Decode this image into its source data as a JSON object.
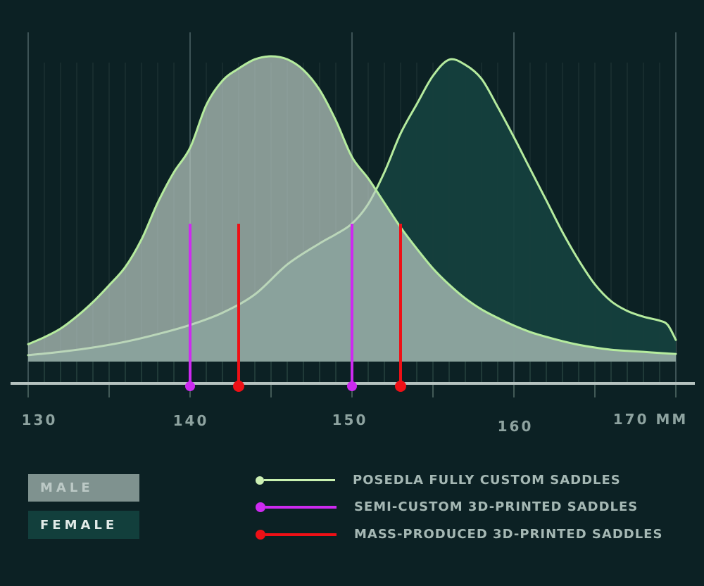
{
  "theme": {
    "background": "#0c2124",
    "axis_color": "#b5c2bf",
    "tick_label_color": "#8ea3a0",
    "grid_minor_color": "#223639",
    "grid_major_color": "#3d5356",
    "grid_band_color": "#27423f",
    "axis_tick_color": "#425a57"
  },
  "chart_data": {
    "type": "area",
    "title": "",
    "xlabel": "MM",
    "ylabel": "",
    "x_range": [
      130,
      170
    ],
    "ylim": [
      0,
      1
    ],
    "grid": "vertical only: minor every 1 mm, major every 10 mm",
    "legend_position": "bottom",
    "x_ticks": [
      130,
      140,
      150,
      160,
      170
    ],
    "x_tick_labels": [
      "130",
      "140",
      "150",
      "160",
      "170 MM"
    ],
    "series": [
      {
        "name": "FEMALE",
        "type": "area",
        "fill": "#15403e",
        "fill_opacity": 0.94,
        "stroke": "#b5eb9e",
        "peak_mm": 156,
        "x": [
          130,
          132,
          134,
          136,
          138,
          140,
          142,
          144,
          146,
          148,
          149,
          150,
          151,
          152,
          153,
          154,
          155,
          156,
          157,
          158,
          159,
          160,
          161,
          162,
          163,
          164,
          165,
          166,
          167,
          168,
          169,
          169.5,
          170
        ],
        "y": [
          0.021,
          0.032,
          0.046,
          0.065,
          0.09,
          0.12,
          0.16,
          0.22,
          0.318,
          0.387,
          0.417,
          0.452,
          0.516,
          0.62,
          0.747,
          0.843,
          0.936,
          0.989,
          0.972,
          0.926,
          0.834,
          0.735,
          0.631,
          0.528,
          0.424,
          0.332,
          0.253,
          0.198,
          0.166,
          0.147,
          0.134,
          0.12,
          0.071
        ]
      },
      {
        "name": "MALE",
        "type": "area",
        "fill": "#bccdc5",
        "fill_opacity": 0.7,
        "stroke": "#b5eb9e",
        "peak_mm": 145,
        "x": [
          130,
          131,
          132,
          133,
          134,
          135,
          136,
          137,
          138,
          139,
          140,
          141,
          142,
          143,
          144,
          145,
          146,
          147,
          148,
          149,
          150,
          151,
          152,
          153,
          154,
          155,
          156,
          157,
          158,
          159,
          160,
          161,
          162,
          163,
          164,
          165,
          166,
          167,
          168,
          169,
          170
        ],
        "y": [
          0.057,
          0.08,
          0.108,
          0.148,
          0.195,
          0.25,
          0.31,
          0.4,
          0.52,
          0.62,
          0.7,
          0.84,
          0.92,
          0.96,
          0.99,
          1.0,
          0.99,
          0.955,
          0.89,
          0.79,
          0.67,
          0.6,
          0.52,
          0.44,
          0.37,
          0.305,
          0.252,
          0.207,
          0.171,
          0.143,
          0.118,
          0.097,
          0.081,
          0.067,
          0.055,
          0.046,
          0.039,
          0.035,
          0.032,
          0.028,
          0.025
        ]
      }
    ],
    "vertical_markers": [
      {
        "label": "SEMI-CUSTOM 3D-PRINTED SADDLES",
        "color": "#cd2af0",
        "x_values_mm": [
          140,
          150
        ],
        "dot_radius": 7
      },
      {
        "label": "MASS-PRODUCED 3D-PRINTED SADDLES",
        "color": "#ee1016",
        "x_values_mm": [
          143,
          153
        ],
        "dot_radius": 8
      }
    ],
    "curve_outline_legend": {
      "label": "POSEDLA FULLY CUSTOM SADDLES",
      "color": "#b5eb9e"
    }
  },
  "legend": {
    "male_box": {
      "label": "MALE",
      "fill": "#7f928f"
    },
    "female_box": {
      "label": "FEMALE",
      "fill": "#123f3c"
    },
    "lines": [
      {
        "label": "POSEDLA FULLY CUSTOM SADDLES",
        "color": "#c9f1b0",
        "dot": "#cdf0b4"
      },
      {
        "label": "SEMI-CUSTOM 3D-PRINTED SADDLES",
        "color": "#cd2af0",
        "dot": "#cd2af0"
      },
      {
        "label": "MASS-PRODUCED 3D-PRINTED SADDLES",
        "color": "#ee1016",
        "dot": "#ee1016"
      }
    ]
  }
}
